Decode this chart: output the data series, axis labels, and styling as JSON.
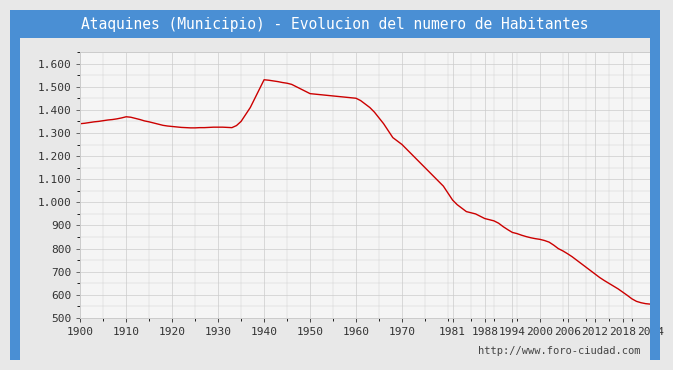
{
  "title": "Ataquines (Municipio) - Evolucion del numero de Habitantes",
  "title_color": "white",
  "title_bg_color": "#4a8fd4",
  "border_color": "#4a8fd4",
  "bg_color": "#e8e8e8",
  "plot_bg_color": "#f5f5f5",
  "line_color": "#cc0000",
  "url_text": "http://www.foro-ciudad.com",
  "ylim": [
    500,
    1650
  ],
  "yticks": [
    500,
    600,
    700,
    800,
    900,
    1000,
    1100,
    1200,
    1300,
    1400,
    1500,
    1600
  ],
  "xlim": [
    1900,
    2024
  ],
  "xticks": [
    1900,
    1910,
    1920,
    1930,
    1940,
    1950,
    1960,
    1970,
    1981,
    1988,
    1994,
    2000,
    2006,
    2012,
    2018,
    2024
  ],
  "years": [
    1900,
    1901,
    1902,
    1903,
    1904,
    1905,
    1906,
    1907,
    1908,
    1909,
    1910,
    1911,
    1912,
    1913,
    1914,
    1915,
    1916,
    1917,
    1918,
    1919,
    1920,
    1921,
    1922,
    1923,
    1924,
    1925,
    1926,
    1927,
    1928,
    1929,
    1930,
    1931,
    1932,
    1933,
    1934,
    1935,
    1936,
    1937,
    1938,
    1939,
    1940,
    1941,
    1942,
    1943,
    1944,
    1945,
    1946,
    1947,
    1948,
    1949,
    1950,
    1951,
    1952,
    1953,
    1954,
    1955,
    1956,
    1957,
    1958,
    1959,
    1960,
    1961,
    1962,
    1963,
    1964,
    1965,
    1966,
    1967,
    1968,
    1969,
    1970,
    1971,
    1972,
    1973,
    1974,
    1975,
    1976,
    1977,
    1978,
    1979,
    1980,
    1981,
    1982,
    1983,
    1984,
    1985,
    1986,
    1987,
    1988,
    1989,
    1990,
    1991,
    1992,
    1993,
    1994,
    1995,
    1996,
    1997,
    1998,
    1999,
    2000,
    2001,
    2002,
    2003,
    2004,
    2005,
    2006,
    2007,
    2008,
    2009,
    2010,
    2011,
    2012,
    2013,
    2014,
    2015,
    2016,
    2017,
    2018,
    2019,
    2020,
    2021,
    2022,
    2023,
    2024
  ],
  "population": [
    1340,
    1342,
    1345,
    1348,
    1350,
    1353,
    1356,
    1358,
    1361,
    1365,
    1370,
    1368,
    1363,
    1358,
    1352,
    1348,
    1343,
    1338,
    1333,
    1330,
    1328,
    1326,
    1324,
    1323,
    1322,
    1322,
    1323,
    1323,
    1324,
    1325,
    1325,
    1325,
    1324,
    1323,
    1332,
    1350,
    1380,
    1410,
    1450,
    1490,
    1530,
    1528,
    1525,
    1522,
    1518,
    1515,
    1510,
    1500,
    1490,
    1480,
    1470,
    1468,
    1466,
    1464,
    1462,
    1460,
    1458,
    1456,
    1454,
    1452,
    1450,
    1440,
    1425,
    1410,
    1390,
    1365,
    1340,
    1310,
    1280,
    1265,
    1250,
    1230,
    1210,
    1190,
    1170,
    1150,
    1130,
    1110,
    1090,
    1070,
    1040,
    1010,
    990,
    975,
    960,
    955,
    950,
    940,
    930,
    925,
    920,
    910,
    895,
    882,
    870,
    865,
    858,
    852,
    847,
    843,
    840,
    835,
    828,
    815,
    800,
    790,
    778,
    765,
    750,
    735,
    720,
    705,
    690,
    675,
    662,
    650,
    638,
    626,
    612,
    598,
    583,
    572,
    566,
    562,
    560
  ],
  "grid_color": "#cccccc",
  "tick_color": "#333333",
  "title_fontsize": 10.5,
  "tick_fontsize": 8,
  "url_fontsize": 7.5
}
